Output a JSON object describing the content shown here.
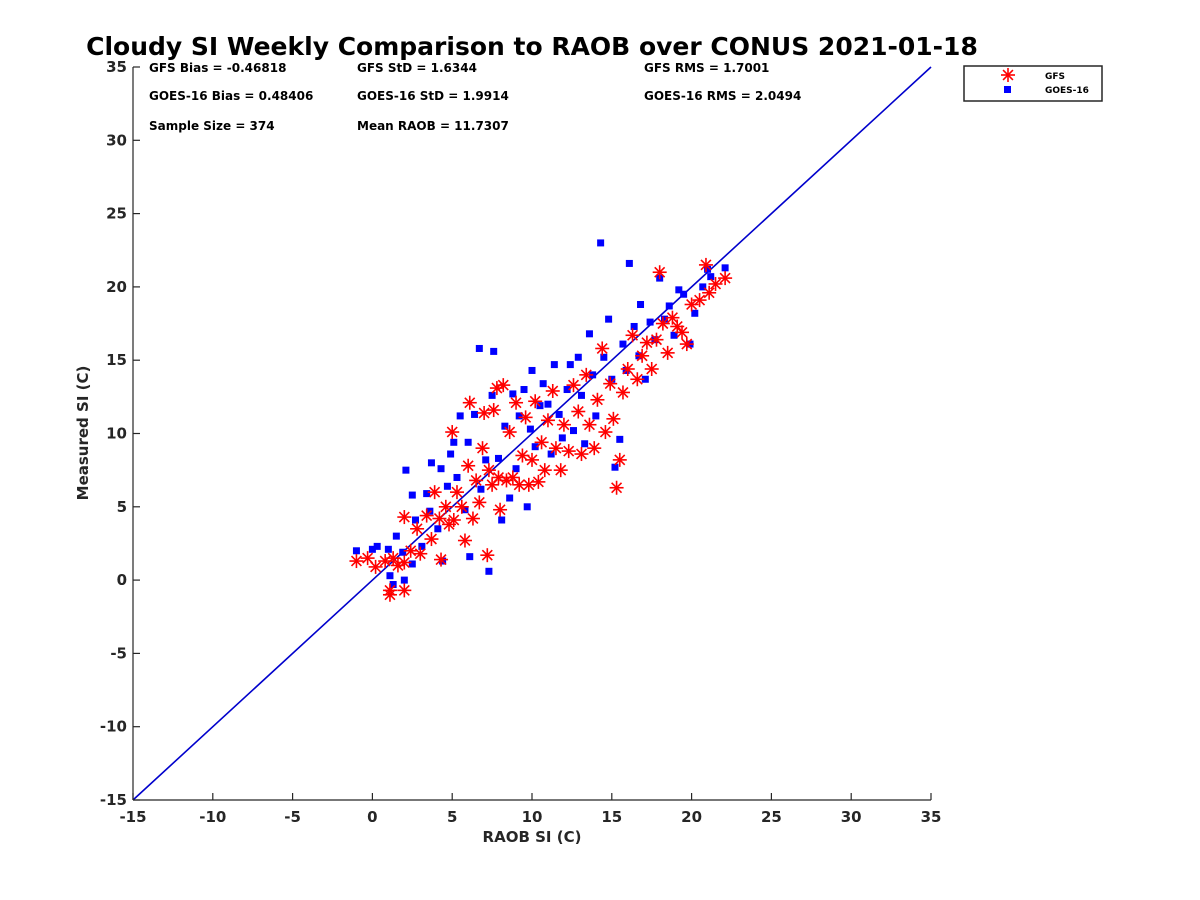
{
  "colors": {
    "gfs": "#ff0000",
    "goes": "#0000ff",
    "reference_line": "#0000cc",
    "axis": "#262626"
  },
  "chart_data": {
    "type": "scatter",
    "title": "Cloudy SI Weekly Comparison to RAOB over CONUS 2021-01-18",
    "xlabel": "RAOB SI (C)",
    "ylabel": "Measured SI (C)",
    "xlim": [
      -15,
      35
    ],
    "ylim": [
      -15,
      35
    ],
    "xticks": [
      -15,
      -10,
      -5,
      0,
      5,
      10,
      15,
      20,
      25,
      30,
      35
    ],
    "yticks": [
      -15,
      -10,
      -5,
      0,
      5,
      10,
      15,
      20,
      25,
      30,
      35
    ],
    "grid": false,
    "legend_position": "top-right (outside plot)",
    "reference_line": {
      "type": "one-to-one",
      "from": [
        -15,
        -15
      ],
      "to": [
        35,
        35
      ]
    },
    "stats": [
      {
        "text": "GFS Bias = -0.46818"
      },
      {
        "text": "GFS StD = 1.6344"
      },
      {
        "text": "GFS RMS = 1.7001"
      },
      {
        "text": "GOES-16 Bias = 0.48406"
      },
      {
        "text": "GOES-16 StD = 1.9914"
      },
      {
        "text": "GOES-16 RMS = 2.0494"
      },
      {
        "text": "Sample Size = 374"
      },
      {
        "text": "Mean RAOB = 11.7307"
      }
    ],
    "series": [
      {
        "name": "GFS",
        "marker": "asterisk",
        "points": [
          [
            -1.0,
            1.3
          ],
          [
            -0.3,
            1.5
          ],
          [
            0.2,
            0.9
          ],
          [
            0.8,
            1.3
          ],
          [
            1.1,
            -0.7
          ],
          [
            1.1,
            -1.0
          ],
          [
            1.3,
            1.5
          ],
          [
            1.6,
            1.0
          ],
          [
            2.0,
            -0.7
          ],
          [
            2.0,
            1.2
          ],
          [
            2.0,
            4.3
          ],
          [
            2.4,
            2.0
          ],
          [
            2.8,
            3.5
          ],
          [
            3.0,
            1.8
          ],
          [
            3.4,
            4.4
          ],
          [
            3.7,
            2.8
          ],
          [
            3.9,
            6.0
          ],
          [
            4.2,
            4.2
          ],
          [
            4.3,
            1.4
          ],
          [
            4.6,
            5.0
          ],
          [
            4.8,
            3.8
          ],
          [
            5.0,
            10.1
          ],
          [
            5.1,
            4.1
          ],
          [
            5.3,
            6.0
          ],
          [
            5.6,
            5.0
          ],
          [
            5.8,
            2.7
          ],
          [
            6.0,
            7.8
          ],
          [
            6.1,
            12.1
          ],
          [
            6.3,
            4.2
          ],
          [
            6.5,
            6.8
          ],
          [
            6.7,
            5.3
          ],
          [
            6.9,
            9.0
          ],
          [
            7.0,
            11.4
          ],
          [
            7.2,
            1.7
          ],
          [
            7.3,
            7.5
          ],
          [
            7.5,
            6.5
          ],
          [
            7.6,
            11.6
          ],
          [
            7.8,
            13.1
          ],
          [
            7.9,
            7.0
          ],
          [
            8.0,
            4.8
          ],
          [
            8.2,
            13.3
          ],
          [
            8.4,
            6.8
          ],
          [
            8.6,
            10.1
          ],
          [
            8.8,
            7.0
          ],
          [
            9.0,
            12.1
          ],
          [
            9.2,
            6.5
          ],
          [
            9.4,
            8.5
          ],
          [
            9.6,
            11.1
          ],
          [
            9.8,
            6.5
          ],
          [
            10.0,
            8.2
          ],
          [
            10.2,
            12.2
          ],
          [
            10.4,
            6.7
          ],
          [
            10.6,
            9.4
          ],
          [
            10.8,
            7.5
          ],
          [
            11.0,
            10.9
          ],
          [
            11.3,
            12.9
          ],
          [
            11.5,
            9.0
          ],
          [
            11.8,
            7.5
          ],
          [
            12.0,
            10.6
          ],
          [
            12.3,
            8.8
          ],
          [
            12.6,
            13.3
          ],
          [
            12.9,
            11.5
          ],
          [
            13.1,
            8.6
          ],
          [
            13.4,
            14.0
          ],
          [
            13.6,
            10.6
          ],
          [
            13.9,
            9.0
          ],
          [
            14.1,
            12.3
          ],
          [
            14.4,
            15.8
          ],
          [
            14.6,
            10.1
          ],
          [
            14.9,
            13.4
          ],
          [
            15.1,
            11.0
          ],
          [
            15.3,
            6.3
          ],
          [
            15.5,
            8.2
          ],
          [
            15.7,
            12.8
          ],
          [
            16.0,
            14.4
          ],
          [
            16.3,
            16.7
          ],
          [
            16.6,
            13.7
          ],
          [
            16.9,
            15.3
          ],
          [
            17.2,
            16.2
          ],
          [
            17.5,
            14.4
          ],
          [
            17.8,
            16.4
          ],
          [
            18.0,
            21.0
          ],
          [
            18.2,
            17.5
          ],
          [
            18.5,
            15.5
          ],
          [
            18.8,
            17.9
          ],
          [
            19.1,
            17.3
          ],
          [
            19.4,
            16.9
          ],
          [
            19.7,
            16.1
          ],
          [
            20.0,
            18.8
          ],
          [
            20.5,
            19.1
          ],
          [
            20.9,
            21.5
          ],
          [
            21.1,
            19.6
          ],
          [
            21.5,
            20.2
          ],
          [
            22.1,
            20.6
          ]
        ]
      },
      {
        "name": "GOES-16",
        "marker": "square",
        "points": [
          [
            -1.0,
            2.0
          ],
          [
            0.0,
            2.1
          ],
          [
            0.3,
            2.3
          ],
          [
            1.0,
            2.1
          ],
          [
            1.1,
            0.3
          ],
          [
            1.3,
            -0.3
          ],
          [
            1.5,
            3.0
          ],
          [
            1.9,
            1.9
          ],
          [
            2.0,
            0.0
          ],
          [
            2.1,
            7.5
          ],
          [
            2.5,
            1.1
          ],
          [
            2.5,
            5.8
          ],
          [
            2.7,
            4.1
          ],
          [
            3.1,
            2.3
          ],
          [
            3.4,
            5.9
          ],
          [
            3.6,
            4.7
          ],
          [
            3.7,
            8.0
          ],
          [
            4.1,
            3.5
          ],
          [
            4.3,
            7.6
          ],
          [
            4.4,
            1.3
          ],
          [
            4.7,
            6.4
          ],
          [
            4.9,
            8.6
          ],
          [
            5.1,
            9.4
          ],
          [
            5.3,
            7.0
          ],
          [
            5.5,
            11.2
          ],
          [
            5.8,
            4.8
          ],
          [
            6.0,
            9.4
          ],
          [
            6.1,
            1.6
          ],
          [
            6.4,
            11.3
          ],
          [
            6.7,
            15.8
          ],
          [
            6.8,
            6.2
          ],
          [
            7.1,
            8.2
          ],
          [
            7.3,
            0.6
          ],
          [
            7.5,
            12.6
          ],
          [
            7.6,
            15.6
          ],
          [
            7.9,
            8.3
          ],
          [
            8.1,
            4.1
          ],
          [
            8.3,
            10.5
          ],
          [
            8.6,
            5.6
          ],
          [
            8.8,
            12.7
          ],
          [
            9.0,
            7.6
          ],
          [
            9.2,
            11.2
          ],
          [
            9.5,
            13.0
          ],
          [
            9.7,
            5.0
          ],
          [
            9.9,
            10.3
          ],
          [
            10.0,
            14.3
          ],
          [
            10.2,
            9.1
          ],
          [
            10.5,
            11.9
          ],
          [
            10.7,
            13.4
          ],
          [
            11.0,
            12.0
          ],
          [
            11.2,
            8.6
          ],
          [
            11.4,
            14.7
          ],
          [
            11.7,
            11.3
          ],
          [
            11.9,
            9.7
          ],
          [
            12.2,
            13.0
          ],
          [
            12.4,
            14.7
          ],
          [
            12.6,
            10.2
          ],
          [
            12.9,
            15.2
          ],
          [
            13.1,
            12.6
          ],
          [
            13.3,
            9.3
          ],
          [
            13.6,
            16.8
          ],
          [
            13.8,
            14.0
          ],
          [
            14.0,
            11.2
          ],
          [
            14.3,
            23.0
          ],
          [
            14.5,
            15.2
          ],
          [
            14.8,
            17.8
          ],
          [
            15.0,
            13.7
          ],
          [
            15.2,
            7.7
          ],
          [
            15.5,
            9.6
          ],
          [
            15.7,
            16.1
          ],
          [
            15.9,
            14.3
          ],
          [
            16.1,
            21.6
          ],
          [
            16.4,
            17.3
          ],
          [
            16.7,
            15.3
          ],
          [
            16.8,
            18.8
          ],
          [
            17.1,
            13.7
          ],
          [
            17.4,
            17.6
          ],
          [
            17.7,
            16.4
          ],
          [
            18.0,
            20.6
          ],
          [
            18.3,
            17.8
          ],
          [
            18.6,
            18.7
          ],
          [
            18.9,
            16.7
          ],
          [
            19.2,
            19.8
          ],
          [
            19.5,
            19.5
          ],
          [
            19.9,
            16.1
          ],
          [
            20.2,
            18.2
          ],
          [
            20.7,
            20.0
          ],
          [
            21.0,
            21.2
          ],
          [
            21.2,
            20.7
          ],
          [
            22.1,
            21.3
          ]
        ]
      }
    ]
  }
}
